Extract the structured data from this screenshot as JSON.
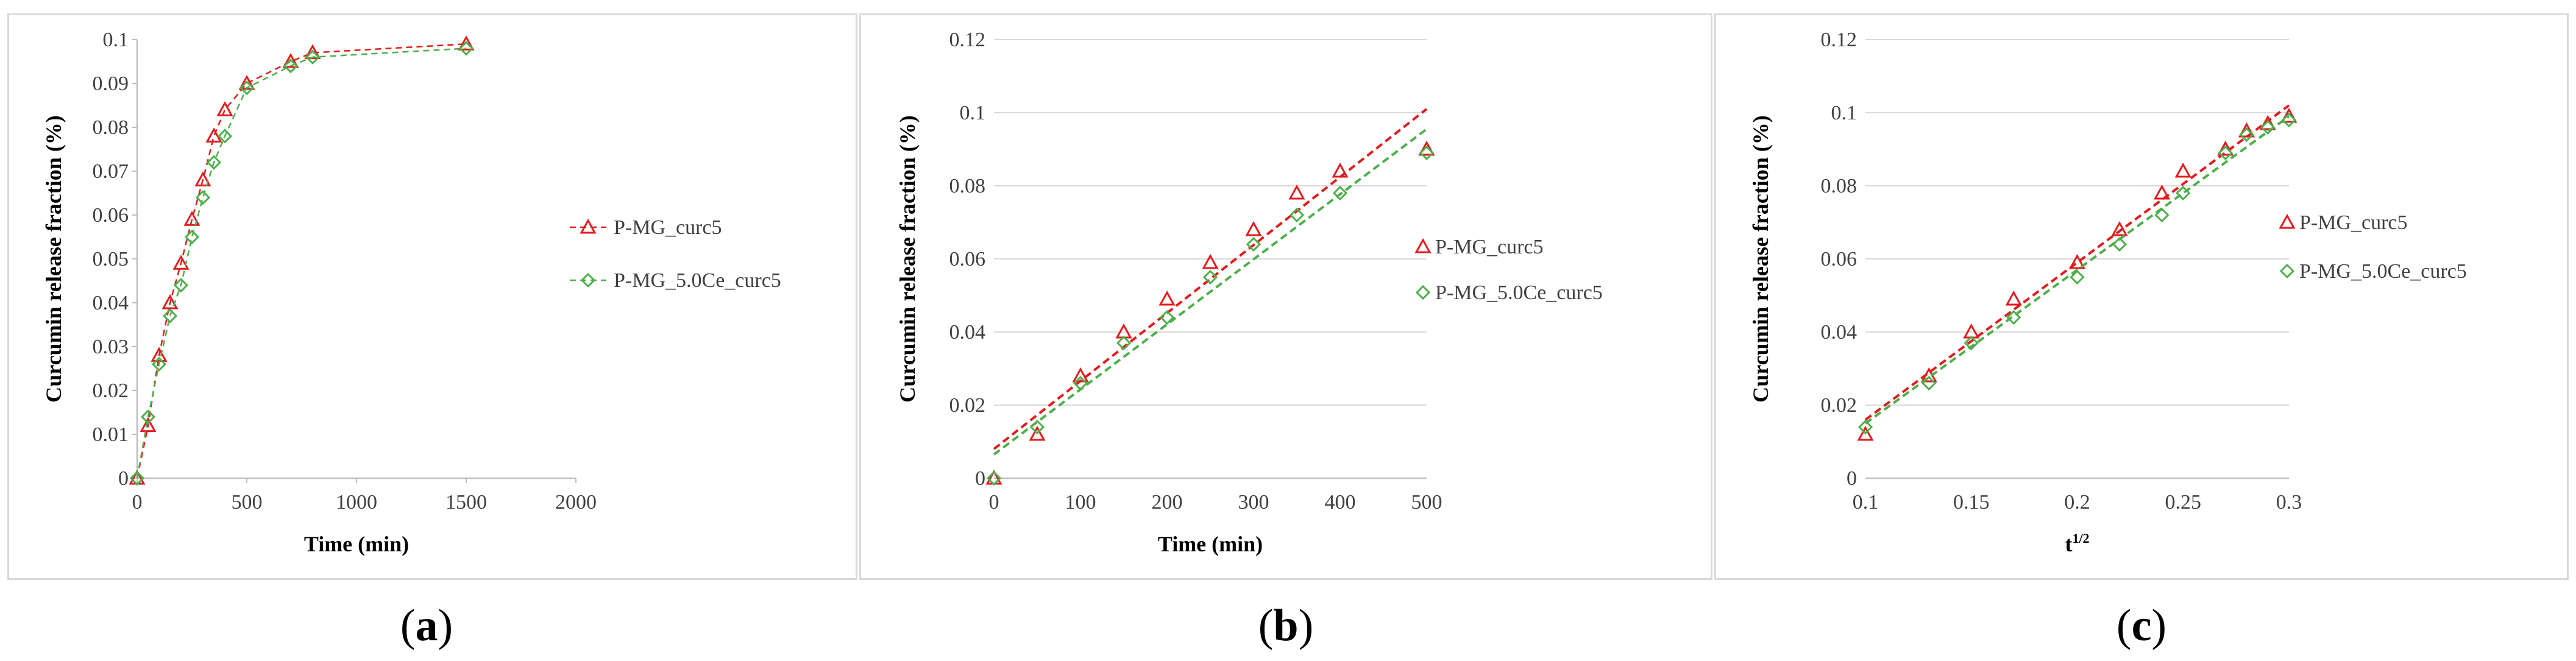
{
  "chart_data": [
    {
      "type": "line",
      "panel": "a",
      "caption": "a",
      "xlabel": "Time (min)",
      "ylabel": "Curcumin release fraction (%)",
      "xlim": [
        0,
        2000
      ],
      "ylim": [
        0,
        0.1
      ],
      "xticks": [
        0,
        500,
        1000,
        1500,
        2000
      ],
      "yticks": [
        0,
        0.01,
        0.02,
        0.03,
        0.04,
        0.05,
        0.06,
        0.07,
        0.08,
        0.09,
        0.1
      ],
      "xtick_labels": [
        "0",
        "500",
        "1000",
        "1500",
        "2000"
      ],
      "ytick_labels": [
        "0",
        "0.01",
        "0.02",
        "0.03",
        "0.04",
        "0.05",
        "0.06",
        "0.07",
        "0.08",
        "0.09",
        "0.1"
      ],
      "grid": false,
      "legend_position": "right",
      "series": [
        {
          "name": "P-MG_curc5",
          "color": "#e31a1c",
          "marker": "triangle",
          "line": "dashed-connect",
          "x": [
            0,
            50,
            100,
            150,
            200,
            250,
            300,
            350,
            400,
            500,
            700,
            800,
            1500
          ],
          "y": [
            0,
            0.012,
            0.028,
            0.04,
            0.049,
            0.059,
            0.068,
            0.078,
            0.084,
            0.09,
            0.095,
            0.097,
            0.099
          ]
        },
        {
          "name": "P-MG_5.0Ce_curc5",
          "color": "#4daf4a",
          "marker": "diamond",
          "line": "dashed-connect",
          "x": [
            0,
            50,
            100,
            150,
            200,
            250,
            300,
            350,
            400,
            500,
            700,
            800,
            1500
          ],
          "y": [
            0,
            0.014,
            0.026,
            0.037,
            0.044,
            0.055,
            0.064,
            0.072,
            0.078,
            0.089,
            0.094,
            0.096,
            0.098
          ]
        }
      ]
    },
    {
      "type": "scatter",
      "panel": "b",
      "caption": "b",
      "xlabel": "Time (min)",
      "ylabel": "Curcumin release fraction (%)",
      "xlim": [
        0,
        500
      ],
      "ylim": [
        0,
        0.12
      ],
      "xticks": [
        0,
        100,
        200,
        300,
        400,
        500
      ],
      "yticks": [
        0,
        0.02,
        0.04,
        0.06,
        0.08,
        0.1,
        0.12
      ],
      "xtick_labels": [
        "0",
        "100",
        "200",
        "300",
        "400",
        "500"
      ],
      "ytick_labels": [
        "0",
        "0.02",
        "0.04",
        "0.06",
        "0.08",
        "0.1",
        "0.12"
      ],
      "grid": true,
      "legend_position": "right",
      "series": [
        {
          "name": "P-MG_curc5",
          "color": "#e31a1c",
          "marker": "triangle",
          "line": "dashed-trend",
          "trend": [
            0.008,
            0.000186
          ],
          "x": [
            0,
            50,
            100,
            150,
            200,
            250,
            300,
            350,
            400,
            500
          ],
          "y": [
            0,
            0.012,
            0.028,
            0.04,
            0.049,
            0.059,
            0.068,
            0.078,
            0.084,
            0.09
          ]
        },
        {
          "name": "P-MG_5.0Ce_curc5",
          "color": "#4daf4a",
          "marker": "diamond",
          "line": "dashed-trend",
          "trend": [
            0.0065,
            0.000178
          ],
          "x": [
            0,
            50,
            100,
            150,
            200,
            250,
            300,
            350,
            400,
            500
          ],
          "y": [
            0,
            0.014,
            0.026,
            0.037,
            0.044,
            0.055,
            0.064,
            0.072,
            0.078,
            0.089
          ]
        }
      ]
    },
    {
      "type": "scatter",
      "panel": "c",
      "caption": "c",
      "xlabel": "t",
      "xlabel_sup": "1/2",
      "ylabel": "Curcumin release fraction (%)",
      "xlim": [
        0.1,
        0.3
      ],
      "ylim": [
        0,
        0.12
      ],
      "xticks": [
        0.1,
        0.15,
        0.2,
        0.25,
        0.3
      ],
      "yticks": [
        0,
        0.02,
        0.04,
        0.06,
        0.08,
        0.1,
        0.12
      ],
      "xtick_labels": [
        "0.1",
        "0.15",
        "0.2",
        "0.25",
        "0.3"
      ],
      "ytick_labels": [
        "0",
        "0.02",
        "0.04",
        "0.06",
        "0.08",
        "0.1",
        "0.12"
      ],
      "grid": true,
      "legend_position": "right",
      "series": [
        {
          "name": "P-MG_curc5",
          "color": "#e31a1c",
          "marker": "triangle",
          "line": "dashed-trend",
          "trend": [
            -0.027,
            0.43
          ],
          "x": [
            0.1,
            0.13,
            0.15,
            0.17,
            0.2,
            0.22,
            0.24,
            0.25,
            0.27,
            0.28,
            0.29,
            0.3
          ],
          "y": [
            0.012,
            0.028,
            0.04,
            0.049,
            0.059,
            0.068,
            0.078,
            0.084,
            0.09,
            0.095,
            0.097,
            0.099
          ]
        },
        {
          "name": "P-MG_5.0Ce_curc5",
          "color": "#4daf4a",
          "marker": "diamond",
          "line": "dashed-trend",
          "trend": [
            -0.027,
            0.42
          ],
          "x": [
            0.1,
            0.13,
            0.15,
            0.17,
            0.2,
            0.22,
            0.24,
            0.25,
            0.27,
            0.28,
            0.29,
            0.3
          ],
          "y": [
            0.014,
            0.026,
            0.037,
            0.044,
            0.055,
            0.064,
            0.072,
            0.078,
            0.089,
            0.094,
            0.096,
            0.098
          ]
        }
      ]
    }
  ]
}
